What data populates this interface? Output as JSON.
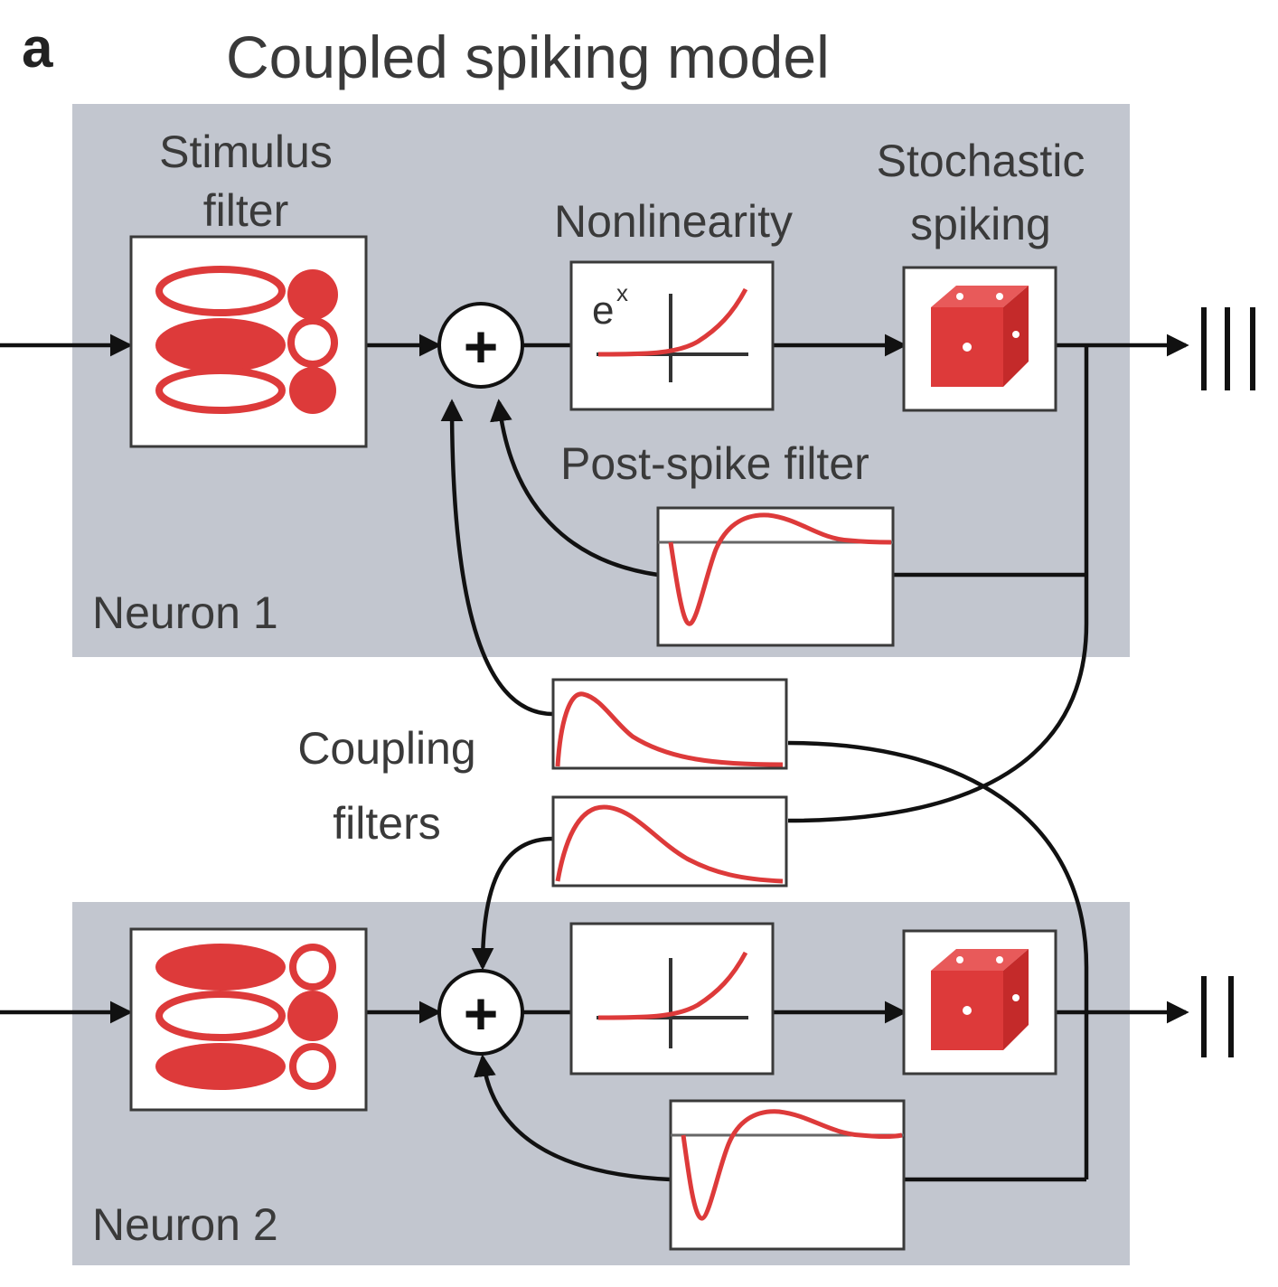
{
  "panel_letter": "a",
  "title": "Coupled spiking model",
  "labels": {
    "stimulus_filter_line1": "Stimulus",
    "stimulus_filter_line2": "filter",
    "nonlinearity": "Nonlinearity",
    "stochastic_line1": "Stochastic",
    "stochastic_line2": "spiking",
    "post_spike_filter": "Post-spike filter",
    "coupling_line1": "Coupling",
    "coupling_line2": "filters",
    "neuron1": "Neuron 1",
    "neuron2": "Neuron 2",
    "exp_base": "e",
    "exp_power": "x",
    "plus": "+"
  },
  "colors": {
    "panel_bg": "#c2c6cf",
    "filter_red": "#dd3a3a",
    "wire": "#111111"
  },
  "outputs": {
    "neuron1_spike_count": 3,
    "neuron2_spike_count": 2
  }
}
